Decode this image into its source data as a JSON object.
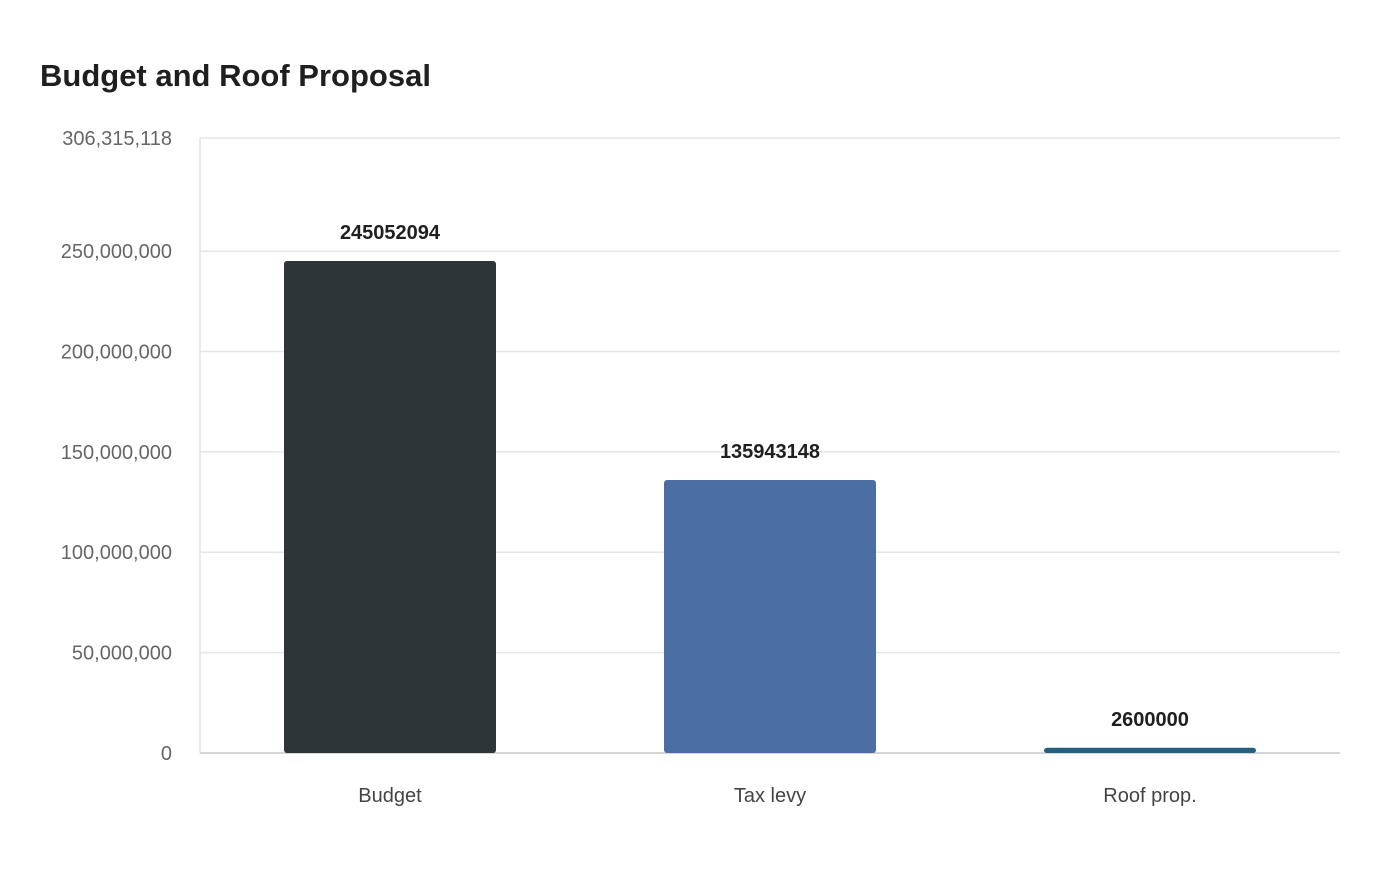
{
  "chart_data": {
    "type": "bar",
    "title": "Budget and Roof Proposal",
    "xlabel": "",
    "ylabel": "",
    "categories": [
      "Budget",
      "Tax levy",
      "Roof prop."
    ],
    "values": [
      245052094,
      135943148,
      2600000
    ],
    "data_labels": [
      "245052094",
      "135943148",
      "2600000"
    ],
    "bar_colors": [
      "#2e3538",
      "#4b6fa5",
      "#27607f"
    ],
    "ylim": [
      0,
      306315118
    ],
    "y_ticks": [
      0,
      50000000,
      100000000,
      150000000,
      200000000,
      250000000,
      306315118
    ],
    "y_tick_labels": [
      "0",
      "50,000,000",
      "100,000,000",
      "150,000,000",
      "200,000,000",
      "250,000,000",
      "306,315,118"
    ],
    "grid": true,
    "legend": "none"
  }
}
